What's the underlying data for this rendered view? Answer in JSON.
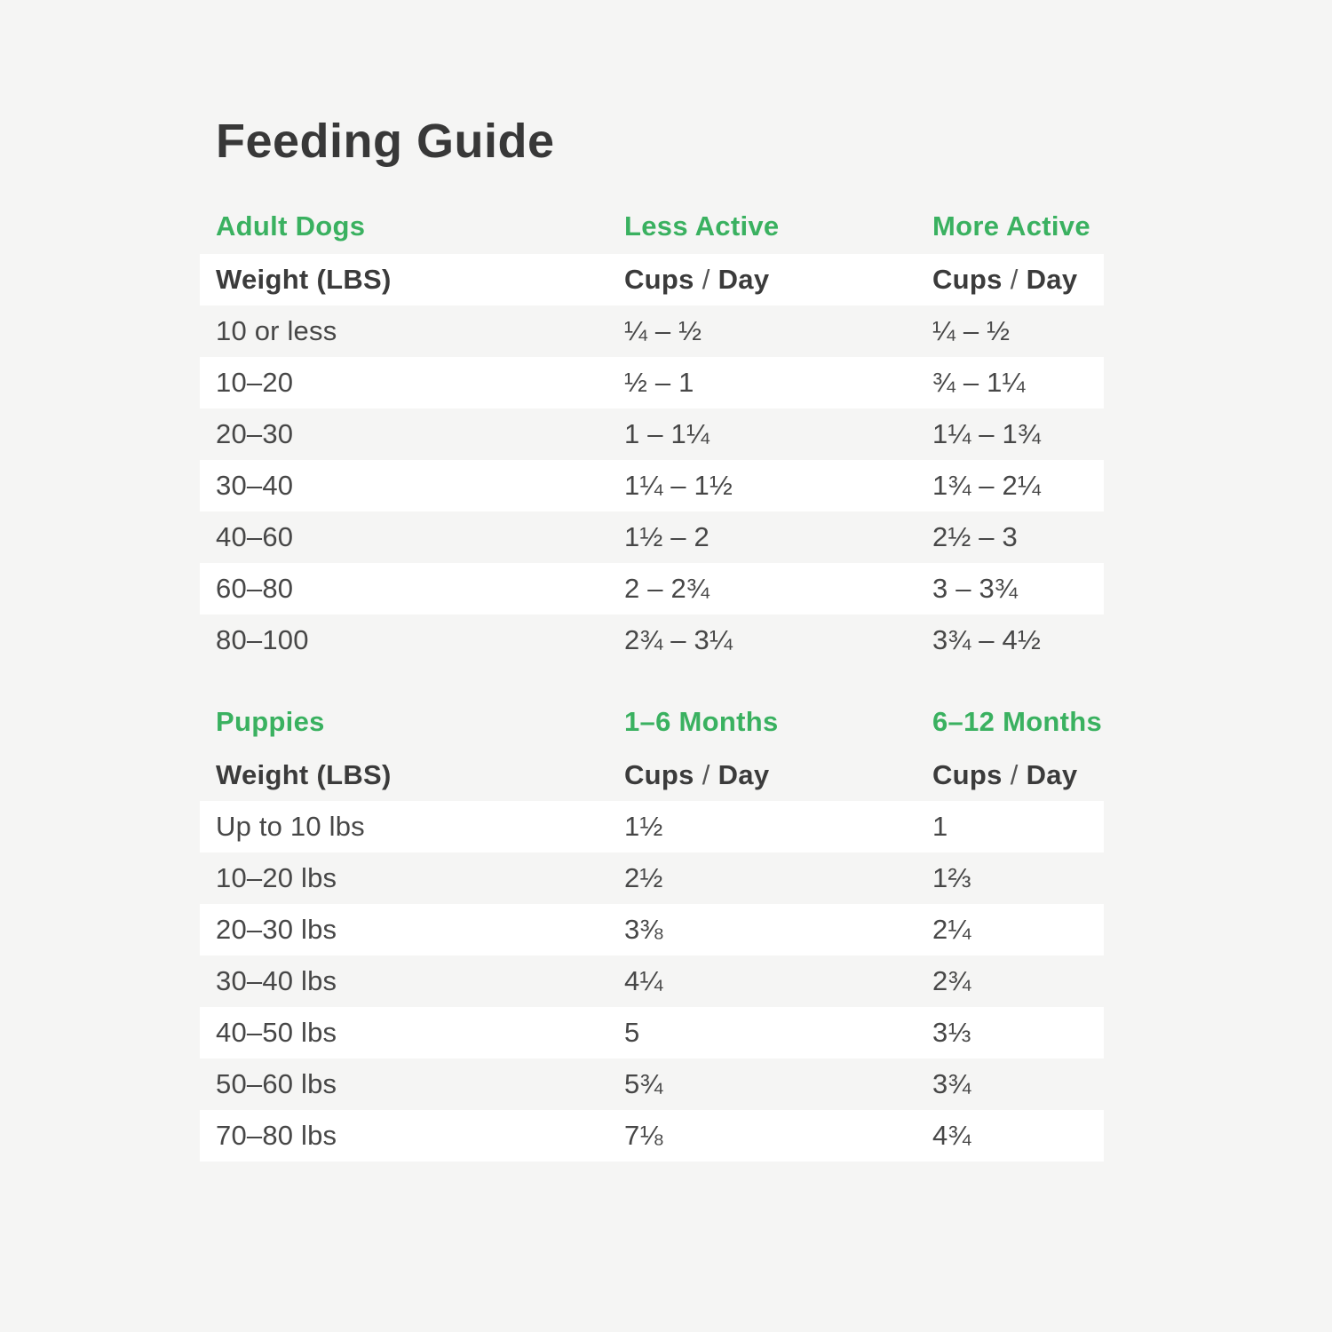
{
  "title": "Feeding Guide",
  "colors": {
    "accent_green": "#3ab160",
    "background": "#f5f5f4",
    "row_stripe_white": "#ffffff",
    "text_dark": "#3e3e3e"
  },
  "tables": [
    {
      "section_title": "Adult Dogs",
      "col2_title": "Less Active",
      "col3_title": "More Active",
      "header": {
        "weight": "Weight (LBS)",
        "cups": "Cups",
        "slash": "/",
        "day": "Day"
      },
      "rows": [
        {
          "weight": "10 or less",
          "c2": "¼ – ½",
          "c3": "¼ – ½"
        },
        {
          "weight": "10–20",
          "c2": "½ – 1",
          "c3": "¾ – 1¼"
        },
        {
          "weight": "20–30",
          "c2": "1 – 1¼",
          "c3": "1¼ – 1¾"
        },
        {
          "weight": "30–40",
          "c2": "1¼ – 1½",
          "c3": "1¾ – 2¼"
        },
        {
          "weight": "40–60",
          "c2": "1½ – 2",
          "c3": "2½ – 3"
        },
        {
          "weight": "60–80",
          "c2": "2 – 2¾",
          "c3": "3 – 3¾"
        },
        {
          "weight": "80–100",
          "c2": "2¾ – 3¼",
          "c3": "3¾ – 4½"
        }
      ]
    },
    {
      "section_title": "Puppies",
      "col2_title": "1–6 Months",
      "col3_title": "6–12 Months",
      "header": {
        "weight": "Weight (LBS)",
        "cups": "Cups",
        "slash": "/",
        "day": "Day"
      },
      "rows": [
        {
          "weight": "Up to 10 lbs",
          "c2": "1½",
          "c3": "1"
        },
        {
          "weight": "10–20 lbs",
          "c2": "2½",
          "c3": "1⅔"
        },
        {
          "weight": "20–30 lbs",
          "c2": "3⅜",
          "c3": "2¼"
        },
        {
          "weight": "30–40 lbs",
          "c2": "4¼",
          "c3": "2¾"
        },
        {
          "weight": "40–50 lbs",
          "c2": "5",
          "c3": "3⅓"
        },
        {
          "weight": "50–60 lbs",
          "c2": "5¾",
          "c3": "3¾"
        },
        {
          "weight": "70–80 lbs",
          "c2": "7⅛",
          "c3": "4¾"
        }
      ]
    }
  ]
}
